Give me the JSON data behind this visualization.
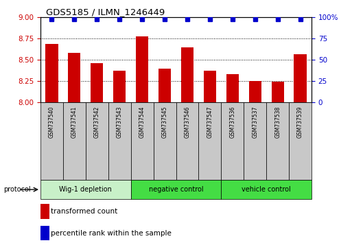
{
  "title": "GDS5185 / ILMN_1246449",
  "samples": [
    "GSM737540",
    "GSM737541",
    "GSM737542",
    "GSM737543",
    "GSM737544",
    "GSM737545",
    "GSM737546",
    "GSM737547",
    "GSM737536",
    "GSM737537",
    "GSM737538",
    "GSM737539"
  ],
  "bar_values": [
    8.68,
    8.58,
    8.46,
    8.37,
    8.77,
    8.39,
    8.64,
    8.37,
    8.33,
    8.25,
    8.24,
    8.56
  ],
  "percentile_values": [
    97,
    97,
    97,
    97,
    97,
    97,
    97,
    97,
    97,
    97,
    97,
    97
  ],
  "bar_bottom": 8.0,
  "ylim_left": [
    8.0,
    9.0
  ],
  "ylim_right": [
    0,
    100
  ],
  "yticks_left": [
    8.0,
    8.25,
    8.5,
    8.75,
    9.0
  ],
  "yticks_right": [
    0,
    25,
    50,
    75,
    100
  ],
  "bar_color": "#cc0000",
  "dot_color": "#0000cc",
  "groups": [
    {
      "label": "Wig-1 depletion",
      "start": 0,
      "end": 4,
      "color": "#c8f0c8"
    },
    {
      "label": "negative control",
      "start": 4,
      "end": 8,
      "color": "#44dd44"
    },
    {
      "label": "vehicle control",
      "start": 8,
      "end": 12,
      "color": "#44dd44"
    }
  ],
  "legend_red_label": "transformed count",
  "legend_blue_label": "percentile rank within the sample",
  "protocol_label": "protocol",
  "left_tick_color": "#cc0000",
  "right_tick_color": "#0000cc",
  "grid_ticks": [
    8.25,
    8.5,
    8.75
  ],
  "sample_box_color": "#c8c8c8"
}
